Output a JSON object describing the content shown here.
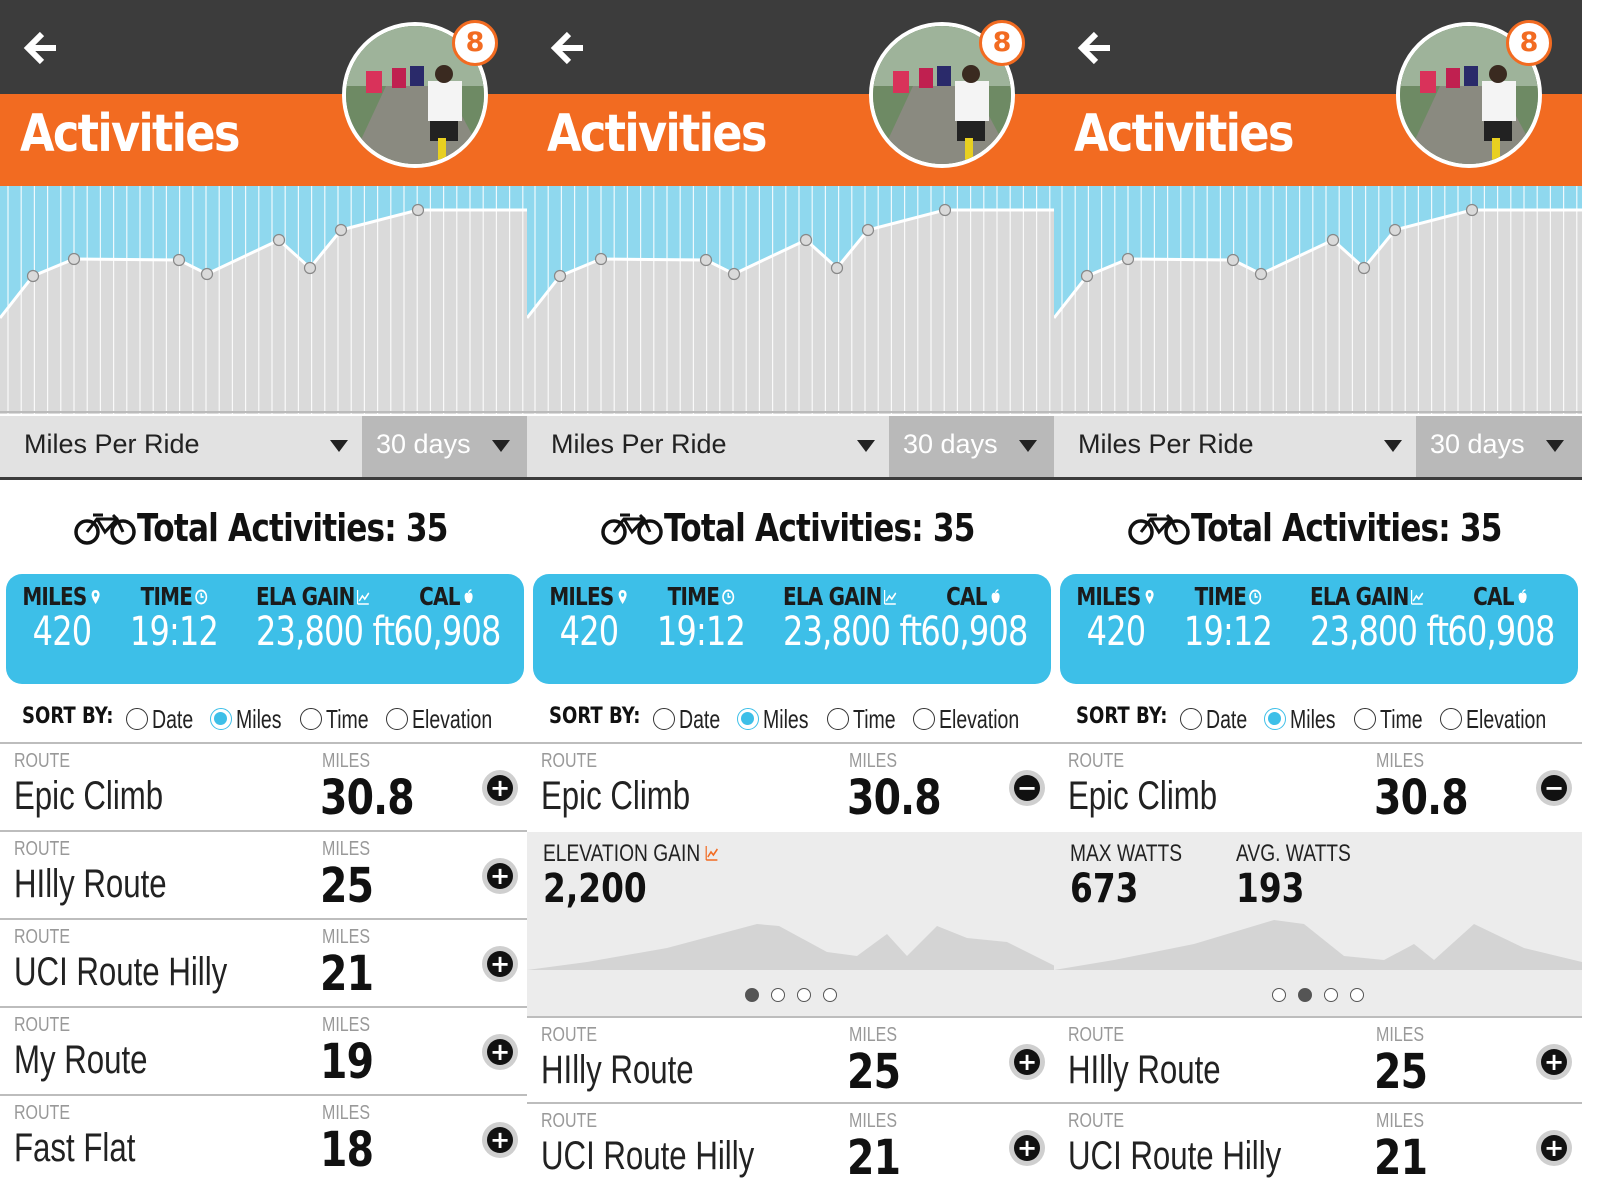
{
  "screens": [
    {
      "header": {
        "title": "Activities",
        "badge_count": "8"
      },
      "metric_select": "Miles Per Ride",
      "range_select": "30 days",
      "total": {
        "label": "Total Activities: 35"
      },
      "stats": [
        {
          "label": "MILES",
          "value": "420",
          "icon": "map-pin-icon"
        },
        {
          "label": "TIME",
          "value": "19:12",
          "icon": "clock-icon"
        },
        {
          "label": "ELA GAIN",
          "value": "23,800 ft",
          "icon": "trend-icon"
        },
        {
          "label": "CAL",
          "value": "60,908",
          "icon": "apple-icon"
        }
      ],
      "sort": {
        "label": "SORT BY:",
        "options": [
          "Date",
          "Miles",
          "Time",
          "Elevation"
        ],
        "selected": "Miles"
      },
      "rows": [
        {
          "route_label": "ROUTE",
          "name": "Epic Climb",
          "miles_label": "MILES",
          "miles": "30.8",
          "action": "+"
        },
        {
          "route_label": "ROUTE",
          "name": "HIlly Route",
          "miles_label": "MILES",
          "miles": "25",
          "action": "+"
        },
        {
          "route_label": "ROUTE",
          "name": "UCI Route Hilly",
          "miles_label": "MILES",
          "miles": "21",
          "action": "+"
        },
        {
          "route_label": "ROUTE",
          "name": "My Route",
          "miles_label": "MILES",
          "miles": "19",
          "action": "+"
        },
        {
          "route_label": "ROUTE",
          "name": "Fast Flat",
          "miles_label": "MILES",
          "miles": "18",
          "action": "+"
        }
      ]
    },
    {
      "header": {
        "title": "Activities",
        "badge_count": "8"
      },
      "metric_select": "Miles Per Ride",
      "range_select": "30 days",
      "total": {
        "label": "Total Activities: 35"
      },
      "stats": [
        {
          "label": "MILES",
          "value": "420",
          "icon": "map-pin-icon"
        },
        {
          "label": "TIME",
          "value": "19:12",
          "icon": "clock-icon"
        },
        {
          "label": "ELA GAIN",
          "value": "23,800 ft",
          "icon": "trend-icon"
        },
        {
          "label": "CAL",
          "value": "60,908",
          "icon": "apple-icon"
        }
      ],
      "sort": {
        "label": "SORT BY:",
        "options": [
          "Date",
          "Miles",
          "Time",
          "Elevation"
        ],
        "selected": "Miles"
      },
      "expanded": {
        "route_label": "ROUTE",
        "name": "Epic Climb",
        "miles_label": "MILES",
        "miles": "30.8",
        "action": "−"
      },
      "detail": {
        "metrics": [
          {
            "label": "ELEVATION GAIN",
            "value": "2,200"
          }
        ],
        "page_index": 0,
        "page_count": 4
      },
      "rows": [
        {
          "route_label": "ROUTE",
          "name": "HIlly Route",
          "miles_label": "MILES",
          "miles": "25",
          "action": "+"
        },
        {
          "route_label": "ROUTE",
          "name": "UCI Route Hilly",
          "miles_label": "MILES",
          "miles": "21",
          "action": "+"
        }
      ]
    },
    {
      "header": {
        "title": "Activities",
        "badge_count": "8"
      },
      "metric_select": "Miles Per Ride",
      "range_select": "30 days",
      "total": {
        "label": "Total Activities: 35"
      },
      "stats": [
        {
          "label": "MILES",
          "value": "420",
          "icon": "map-pin-icon"
        },
        {
          "label": "TIME",
          "value": "19:12",
          "icon": "clock-icon"
        },
        {
          "label": "ELA GAIN",
          "value": "23,800 ft",
          "icon": "trend-icon"
        },
        {
          "label": "CAL",
          "value": "60,908",
          "icon": "apple-icon"
        }
      ],
      "sort": {
        "label": "SORT BY:",
        "options": [
          "Date",
          "Miles",
          "Time",
          "Elevation"
        ],
        "selected": "Miles"
      },
      "expanded": {
        "route_label": "ROUTE",
        "name": "Epic Climb",
        "miles_label": "MILES",
        "miles": "30.8",
        "action": "−"
      },
      "detail": {
        "metrics": [
          {
            "label": "MAX WATTS",
            "value": "673"
          },
          {
            "label": "AVG. WATTS",
            "value": "193"
          }
        ],
        "page_index": 1,
        "page_count": 4
      },
      "rows": [
        {
          "route_label": "ROUTE",
          "name": "HIlly Route",
          "miles_label": "MILES",
          "miles": "25",
          "action": "+"
        },
        {
          "route_label": "ROUTE",
          "name": "UCI Route Hilly",
          "miles_label": "MILES",
          "miles": "21",
          "action": "+"
        }
      ]
    }
  ],
  "colors": {
    "header_dark": "#3c3c3c",
    "accent_orange": "#f26b21",
    "accent_blue": "#3dbfe8",
    "chart_fill_gray": "#d8d8d8"
  }
}
